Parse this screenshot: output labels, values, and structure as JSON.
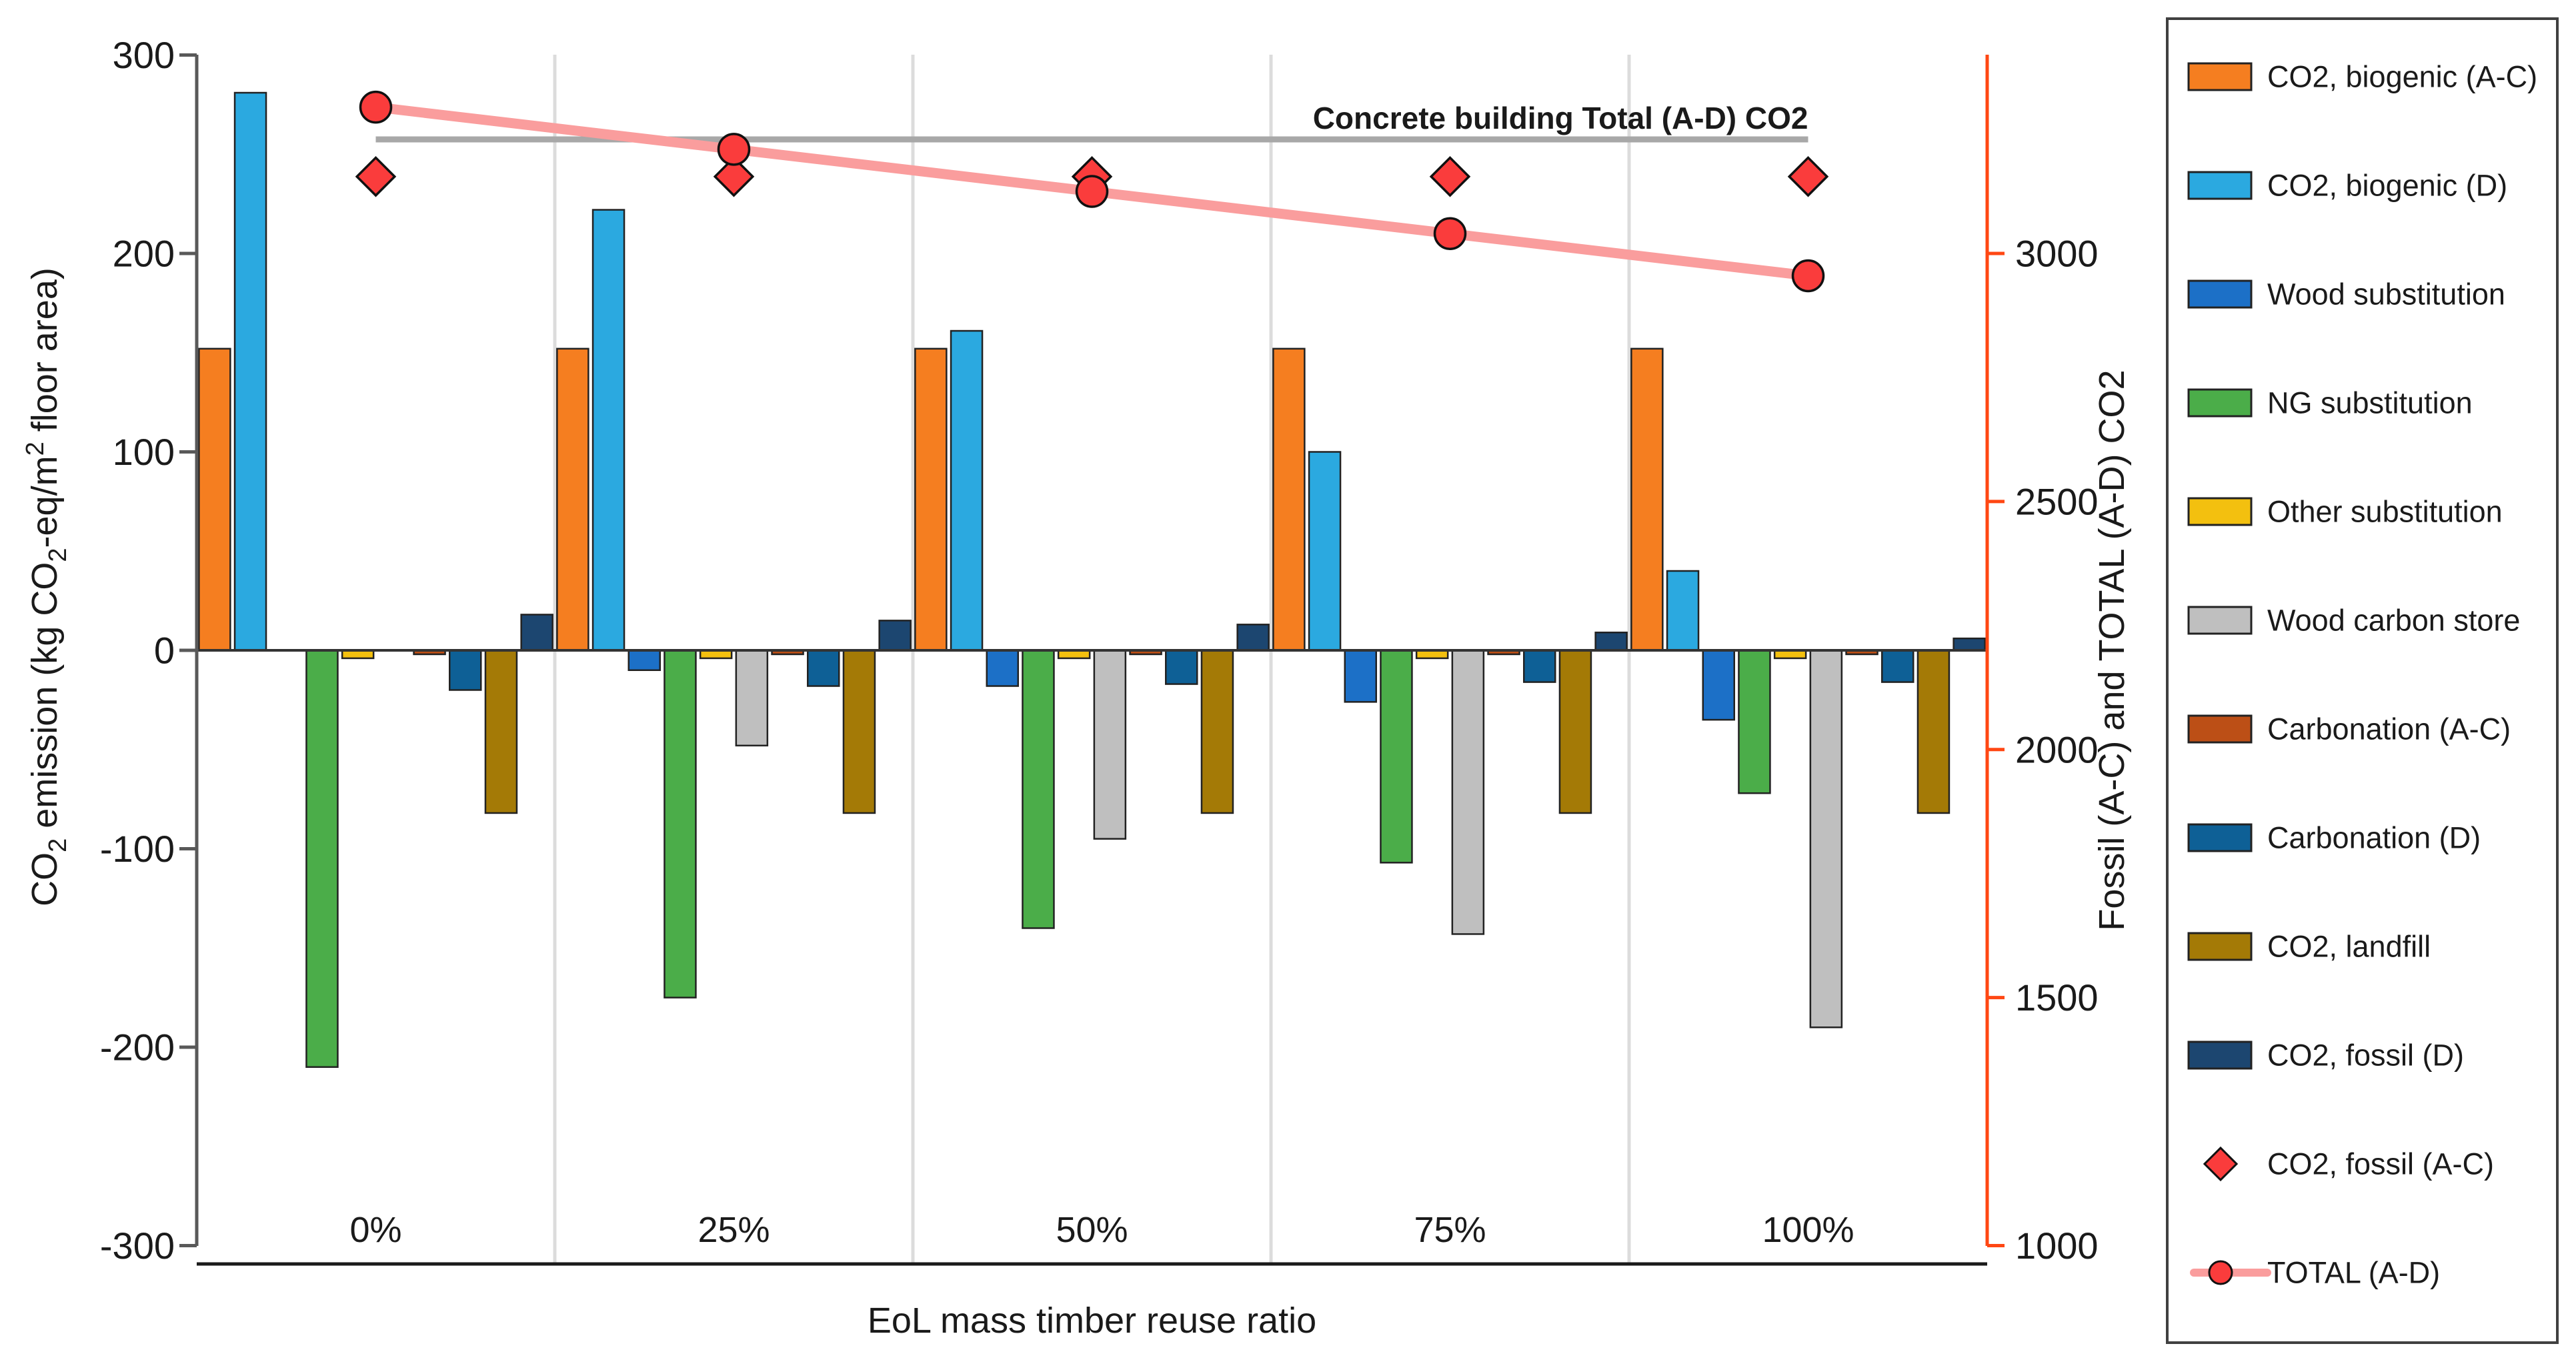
{
  "chart_data": {
    "type": "bar",
    "categories": [
      "0%",
      "25%",
      "50%",
      "75%",
      "100%"
    ],
    "x_axis": {
      "label": "EoL mass timber reuse ratio"
    },
    "left_axis": {
      "label": "CO2 emission (kg CO2-eq/m2 floor area)",
      "label_segments": [
        {
          "t": "CO"
        },
        {
          "t": "2",
          "s": "sub"
        },
        {
          "t": " emission (kg CO"
        },
        {
          "t": "2",
          "s": "sub"
        },
        {
          "t": "-eq/m"
        },
        {
          "t": "2",
          "s": "sup"
        },
        {
          "t": " floor area)"
        }
      ],
      "ticks": [
        300,
        200,
        100,
        0,
        -100,
        -200,
        -300
      ],
      "range": [
        -300,
        300
      ]
    },
    "right_axis": {
      "label": "Fossil (A-C) and TOTAL (A-D) CO2",
      "ticks": [
        3000,
        2500,
        2000,
        1500,
        1000
      ],
      "range": [
        1000,
        3400
      ],
      "axis_color": "#FF4713",
      "tick_label_color": "#FF3A10",
      "title_color": "#FE1010"
    },
    "series": [
      {
        "name": "CO2, biogenic (A-C)",
        "color": "#F57E20",
        "values": [
          152,
          152,
          152,
          152,
          152
        ]
      },
      {
        "name": "CO2, biogenic (D)",
        "color": "#2BA9E0",
        "values": [
          281,
          222,
          161,
          100,
          40
        ]
      },
      {
        "name": "Wood substitution",
        "color": "#1C70C7",
        "values": [
          0,
          -10,
          -18,
          -26,
          -35
        ]
      },
      {
        "name": "NG substitution",
        "color": "#4BAD49",
        "values": [
          -210,
          -175,
          -140,
          -107,
          -72
        ]
      },
      {
        "name": "Other substitution",
        "color": "#F3C00F",
        "values": [
          -4,
          -4,
          -4,
          -4,
          -4
        ]
      },
      {
        "name": "Wood carbon store",
        "color": "#BFBFBF",
        "values": [
          0,
          -48,
          -95,
          -143,
          -190
        ]
      },
      {
        "name": "Carbonation (A-C)",
        "color": "#BC4F16",
        "values": [
          -2,
          -2,
          -2,
          -2,
          -2
        ]
      },
      {
        "name": "Carbonation (D)",
        "color": "#0E6096",
        "values": [
          -20,
          -18,
          -17,
          -16,
          -16
        ]
      },
      {
        "name": "CO2, landfill",
        "color": "#A47A06",
        "values": [
          -82,
          -82,
          -82,
          -82,
          -82
        ]
      },
      {
        "name": "CO2, fossil (D)",
        "color": "#1C4670",
        "values": [
          18,
          15,
          13,
          9,
          6
        ]
      }
    ],
    "scatter": {
      "name": "CO2, fossil (A-C)",
      "axis": "right",
      "marker": "diamond",
      "fill": "#FA3C3C",
      "values": [
        3155,
        3155,
        3155,
        3155,
        3155
      ]
    },
    "line": {
      "name": "TOTAL (A-D)",
      "axis": "right",
      "marker": "circle",
      "fill": "#FA3C3C",
      "line_color": "#FA9D9D",
      "values": [
        3295,
        3210,
        3125,
        3040,
        2955
      ]
    },
    "reference_line": {
      "label": "Concrete building Total (A-D) CO2",
      "axis": "right",
      "value": 3230,
      "color": "#A8A8A8"
    },
    "legend_position": "right"
  }
}
